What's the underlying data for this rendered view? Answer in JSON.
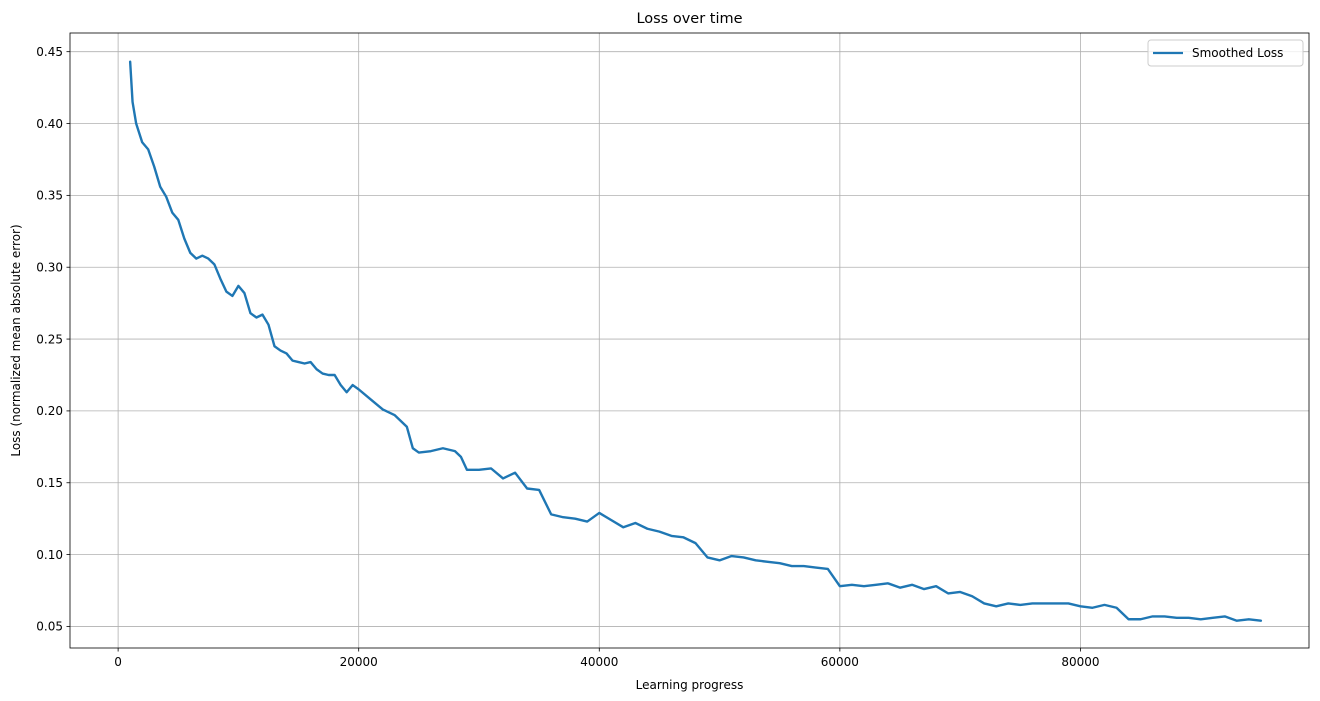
{
  "chart_data": {
    "type": "line",
    "title": "Loss over time",
    "xlabel": "Learning progress",
    "ylabel": "Loss (normalized mean absolute error)",
    "xlim": [
      -4000,
      99000
    ],
    "ylim": [
      0.035,
      0.463
    ],
    "xticks": [
      0,
      20000,
      40000,
      60000,
      80000
    ],
    "xtick_labels": [
      "0",
      "20000",
      "40000",
      "60000",
      "80000"
    ],
    "yticks": [
      0.05,
      0.1,
      0.15,
      0.2,
      0.25,
      0.3,
      0.35,
      0.4,
      0.45
    ],
    "ytick_labels": [
      "0.05",
      "0.10",
      "0.15",
      "0.20",
      "0.25",
      "0.30",
      "0.35",
      "0.40",
      "0.45"
    ],
    "grid": true,
    "legend": "top-right",
    "series": [
      {
        "name": "Smoothed Loss",
        "color": "#1f77b4",
        "x": [
          1000,
          1200,
          1500,
          2000,
          2500,
          3000,
          3500,
          4000,
          4500,
          5000,
          5500,
          6000,
          6500,
          7000,
          7500,
          8000,
          8500,
          9000,
          9500,
          10000,
          10500,
          11000,
          11500,
          12000,
          12500,
          13000,
          13500,
          14000,
          14500,
          15000,
          15500,
          16000,
          16500,
          17000,
          17500,
          18000,
          18500,
          19000,
          19500,
          20000,
          21000,
          22000,
          23000,
          24000,
          24500,
          25000,
          26000,
          27000,
          28000,
          28500,
          29000,
          30000,
          31000,
          32000,
          33000,
          34000,
          35000,
          36000,
          37000,
          38000,
          39000,
          40000,
          41000,
          42000,
          43000,
          44000,
          45000,
          46000,
          47000,
          48000,
          49000,
          50000,
          51000,
          52000,
          53000,
          54000,
          55000,
          56000,
          57000,
          58000,
          59000,
          60000,
          61000,
          62000,
          63000,
          64000,
          65000,
          66000,
          67000,
          68000,
          69000,
          70000,
          71000,
          72000,
          73000,
          74000,
          75000,
          76000,
          77000,
          78000,
          79000,
          80000,
          81000,
          82000,
          83000,
          84000,
          85000,
          86000,
          87000,
          88000,
          89000,
          90000,
          91000,
          92000,
          93000,
          94000,
          95000
        ],
        "values": [
          0.443,
          0.415,
          0.4,
          0.387,
          0.382,
          0.37,
          0.356,
          0.349,
          0.338,
          0.333,
          0.32,
          0.31,
          0.306,
          0.308,
          0.306,
          0.302,
          0.292,
          0.283,
          0.28,
          0.287,
          0.282,
          0.268,
          0.265,
          0.267,
          0.26,
          0.245,
          0.242,
          0.24,
          0.235,
          0.234,
          0.233,
          0.234,
          0.229,
          0.226,
          0.225,
          0.225,
          0.218,
          0.213,
          0.218,
          0.215,
          0.208,
          0.201,
          0.197,
          0.189,
          0.174,
          0.171,
          0.172,
          0.174,
          0.172,
          0.168,
          0.159,
          0.159,
          0.16,
          0.153,
          0.157,
          0.146,
          0.145,
          0.128,
          0.126,
          0.125,
          0.123,
          0.129,
          0.124,
          0.119,
          0.122,
          0.118,
          0.116,
          0.113,
          0.112,
          0.108,
          0.098,
          0.096,
          0.099,
          0.098,
          0.096,
          0.095,
          0.094,
          0.092,
          0.092,
          0.091,
          0.09,
          0.078,
          0.079,
          0.078,
          0.079,
          0.08,
          0.077,
          0.079,
          0.076,
          0.078,
          0.073,
          0.074,
          0.071,
          0.066,
          0.064,
          0.066,
          0.065,
          0.066,
          0.066,
          0.066,
          0.066,
          0.064,
          0.063,
          0.065,
          0.063,
          0.055,
          0.055,
          0.057,
          0.057,
          0.056,
          0.056,
          0.055,
          0.056,
          0.057,
          0.054,
          0.055,
          0.054
        ]
      }
    ]
  }
}
